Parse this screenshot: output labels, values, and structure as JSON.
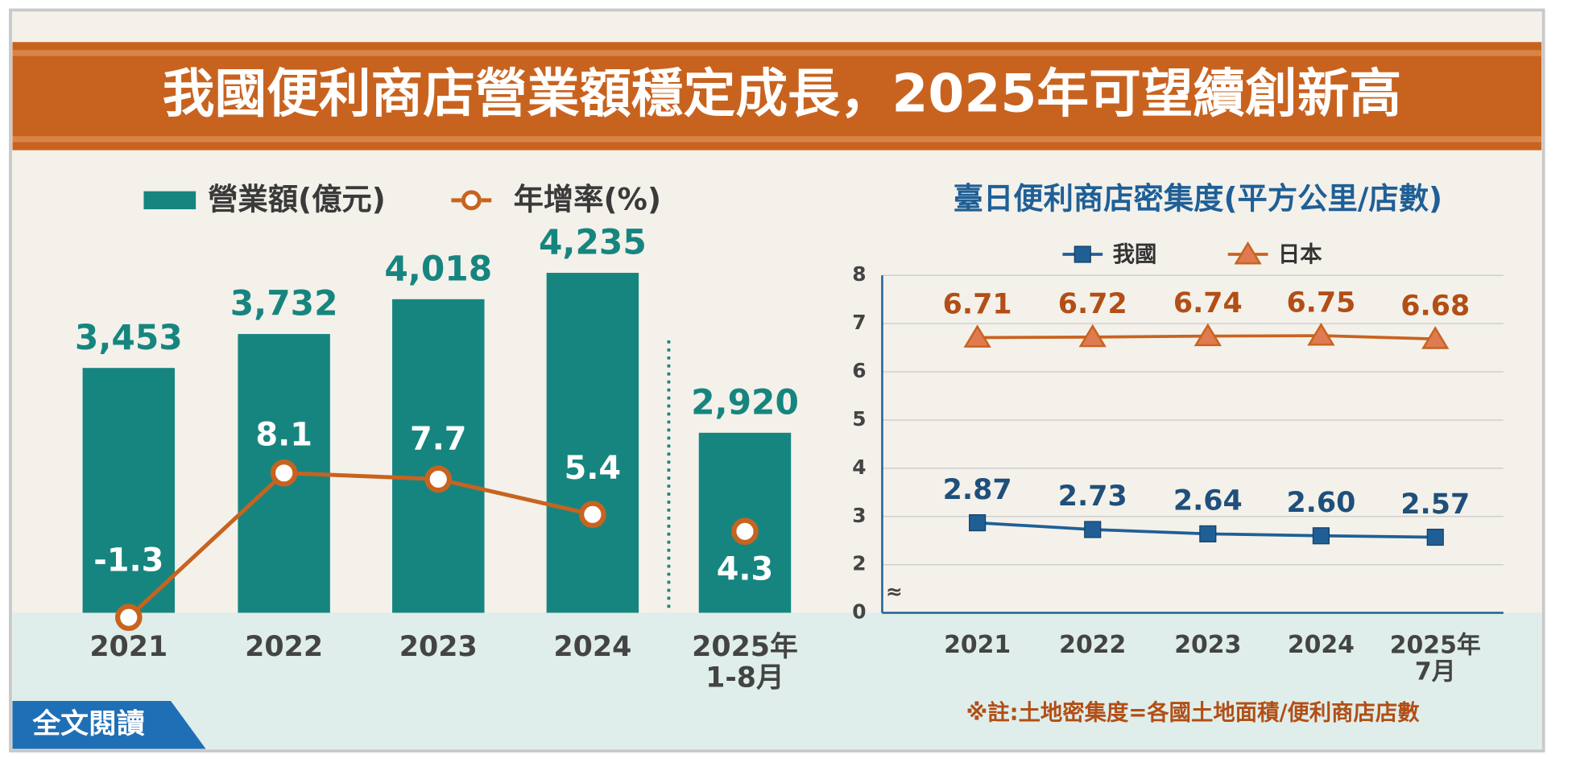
{
  "title": "我國便利商店營業額穩定成長，2025年可望續創新高",
  "chart_data": [
    {
      "type": "bar",
      "categories": [
        "2021",
        "2022",
        "2023",
        "2024",
        "2025年\n1-8月"
      ],
      "series": [
        {
          "name": "營業額(億元)",
          "type": "bar",
          "color": "#17857f",
          "values": [
            3453,
            3732,
            4018,
            4235,
            2920
          ],
          "value_labels": [
            "3,453",
            "3,732",
            "4,018",
            "4,235",
            "2,920"
          ]
        },
        {
          "name": "年增率(%)",
          "type": "line",
          "axis": "y2",
          "color": "#c8631f",
          "values": [
            -1.3,
            8.1,
            7.7,
            5.4,
            4.3
          ]
        }
      ],
      "ylim": [
        1440,
        4420
      ],
      "y2lim": [
        -1,
        22.6
      ]
    },
    {
      "type": "line",
      "title": "臺日便利商店密集度(平方公里/店數)",
      "categories": [
        "2021",
        "2022",
        "2023",
        "2024",
        "2025年\n7月"
      ],
      "series": [
        {
          "name": "我國",
          "color": "#1f5f96",
          "marker": "square",
          "values": [
            2.87,
            2.73,
            2.64,
            2.6,
            2.57
          ],
          "value_labels": [
            "2.87",
            "2.73",
            "2.64",
            "2.60",
            "2.57"
          ]
        },
        {
          "name": "日本",
          "color": "#c8631f",
          "marker": "triangle",
          "values": [
            6.71,
            6.72,
            6.74,
            6.75,
            6.68
          ]
        }
      ],
      "ylim": [
        0,
        8
      ],
      "yticks": [
        0,
        2,
        3,
        4,
        5,
        6,
        7,
        8
      ],
      "axis_break": true,
      "note": "※註:土地密集度=各國土地面積/便利商店店數"
    }
  ],
  "button": "全文閱讀"
}
